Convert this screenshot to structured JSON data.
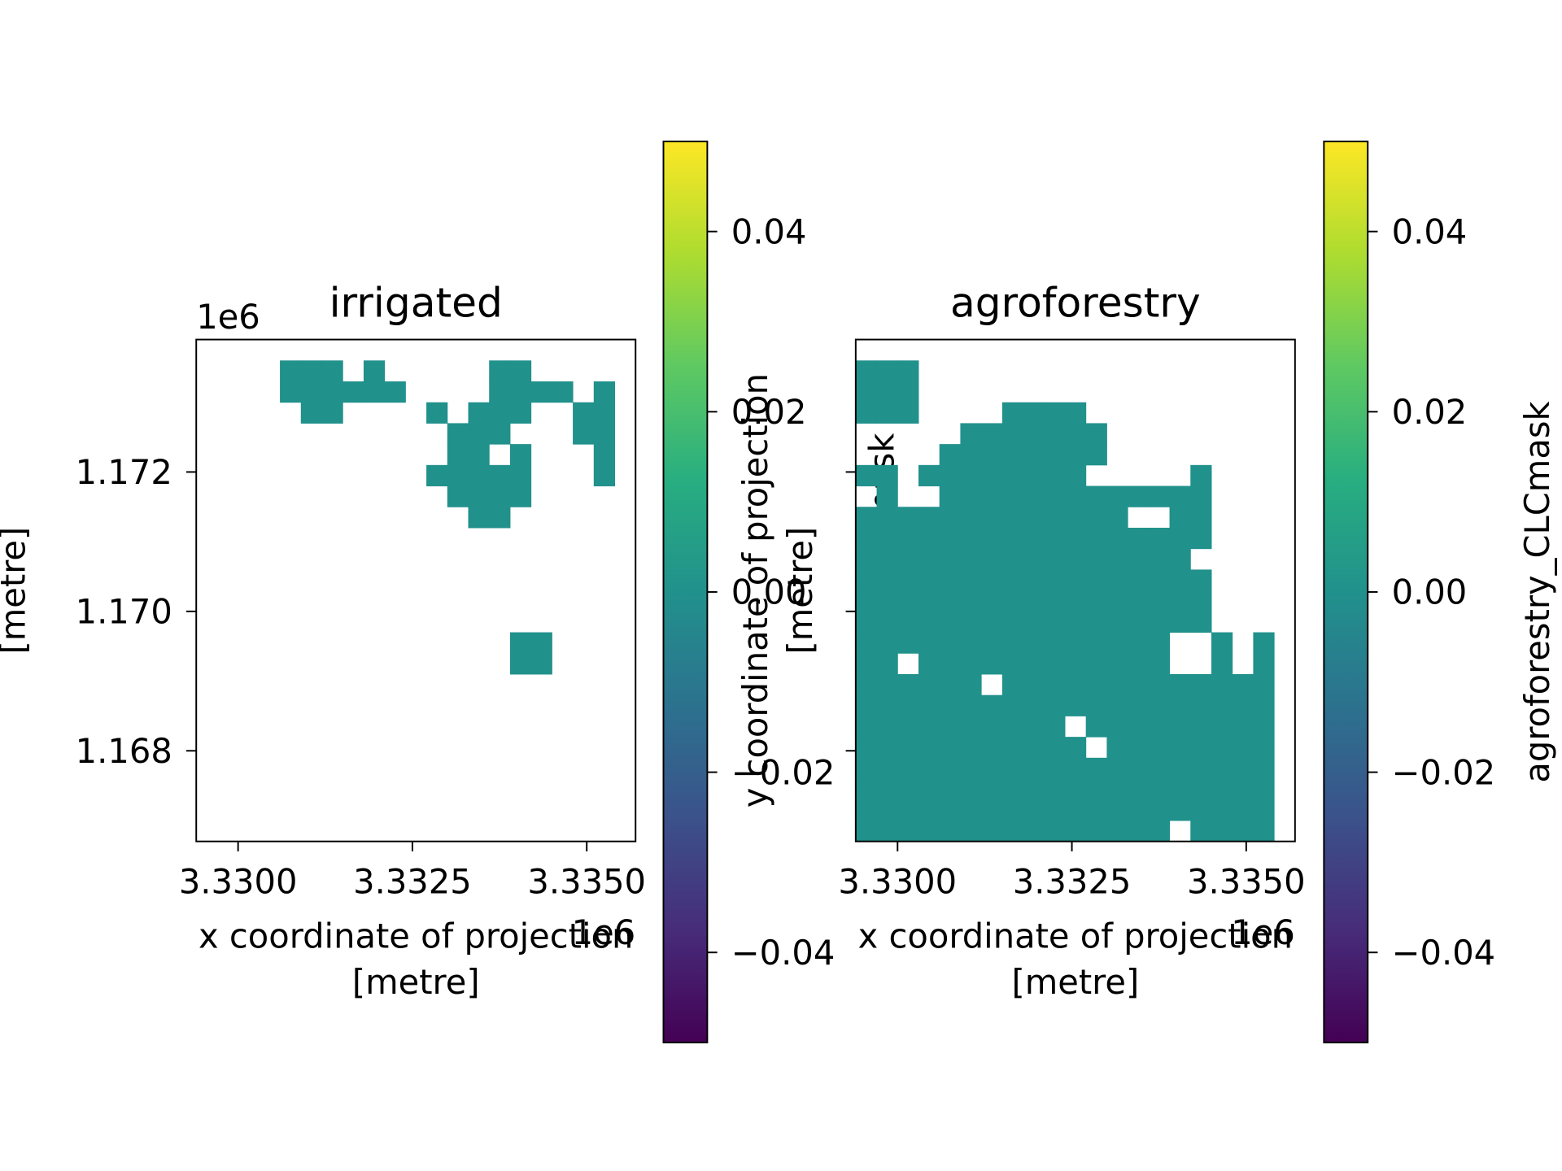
{
  "chart_data": [
    {
      "type": "heatmap",
      "title": "irrigated",
      "cmap": "viridis",
      "xlabel": [
        "x coordinate of projection",
        "[metre]"
      ],
      "ylabel": [
        "y coordinate of projection",
        "[metre]"
      ],
      "xlim": [
        3329400,
        3335700
      ],
      "ylim": [
        1166700,
        1173900
      ],
      "xticks": [
        {
          "value": 3330000,
          "label": "3.3300"
        },
        {
          "value": 3332500,
          "label": "3.3325"
        },
        {
          "value": 3335000,
          "label": "3.3350"
        }
      ],
      "xoffset": "1e6",
      "yticks": [
        {
          "value": 1168000,
          "label": "1.168"
        },
        {
          "value": 1170000,
          "label": "1.170"
        },
        {
          "value": 1172000,
          "label": "1.172"
        }
      ],
      "yoffset": "1e6",
      "z": [
        [
          null,
          null,
          null,
          null,
          null,
          null,
          null,
          null,
          null,
          null,
          null,
          null,
          null,
          null,
          null,
          null,
          null,
          null,
          null,
          null,
          null
        ],
        [
          null,
          null,
          null,
          null,
          0,
          0,
          0,
          null,
          0,
          null,
          null,
          null,
          null,
          null,
          0,
          0,
          null,
          null,
          null,
          null,
          null
        ],
        [
          null,
          null,
          null,
          null,
          0,
          0,
          0,
          0,
          0,
          0,
          null,
          null,
          null,
          null,
          0,
          0,
          0,
          0,
          null,
          0,
          null
        ],
        [
          null,
          null,
          null,
          null,
          null,
          0,
          0,
          null,
          null,
          null,
          null,
          0,
          null,
          0,
          0,
          0,
          null,
          null,
          0,
          0,
          null
        ],
        [
          null,
          null,
          null,
          null,
          null,
          null,
          null,
          null,
          null,
          null,
          null,
          null,
          0,
          0,
          0,
          null,
          null,
          null,
          0,
          0,
          null
        ],
        [
          null,
          null,
          null,
          null,
          null,
          null,
          null,
          null,
          null,
          null,
          null,
          null,
          0,
          0,
          null,
          0,
          null,
          null,
          null,
          0,
          null
        ],
        [
          null,
          null,
          null,
          null,
          null,
          null,
          null,
          null,
          null,
          null,
          null,
          0,
          0,
          0,
          0,
          0,
          null,
          null,
          null,
          0,
          null
        ],
        [
          null,
          null,
          null,
          null,
          null,
          null,
          null,
          null,
          null,
          null,
          null,
          null,
          0,
          0,
          0,
          0,
          null,
          null,
          null,
          null,
          null
        ],
        [
          null,
          null,
          null,
          null,
          null,
          null,
          null,
          null,
          null,
          null,
          null,
          null,
          null,
          0,
          0,
          null,
          null,
          null,
          null,
          null,
          null
        ],
        [
          null,
          null,
          null,
          null,
          null,
          null,
          null,
          null,
          null,
          null,
          null,
          null,
          null,
          null,
          null,
          null,
          null,
          null,
          null,
          null,
          null
        ],
        [
          null,
          null,
          null,
          null,
          null,
          null,
          null,
          null,
          null,
          null,
          null,
          null,
          null,
          null,
          null,
          null,
          null,
          null,
          null,
          null,
          null
        ],
        [
          null,
          null,
          null,
          null,
          null,
          null,
          null,
          null,
          null,
          null,
          null,
          null,
          null,
          null,
          null,
          null,
          null,
          null,
          null,
          null,
          null
        ],
        [
          null,
          null,
          null,
          null,
          null,
          null,
          null,
          null,
          null,
          null,
          null,
          null,
          null,
          null,
          null,
          null,
          null,
          null,
          null,
          null,
          null
        ],
        [
          null,
          null,
          null,
          null,
          null,
          null,
          null,
          null,
          null,
          null,
          null,
          null,
          null,
          null,
          null,
          null,
          null,
          null,
          null,
          null,
          null
        ],
        [
          null,
          null,
          null,
          null,
          null,
          null,
          null,
          null,
          null,
          null,
          null,
          null,
          null,
          null,
          null,
          0,
          0,
          null,
          null,
          null,
          null
        ],
        [
          null,
          null,
          null,
          null,
          null,
          null,
          null,
          null,
          null,
          null,
          null,
          null,
          null,
          null,
          null,
          0,
          0,
          null,
          null,
          null,
          null
        ],
        [
          null,
          null,
          null,
          null,
          null,
          null,
          null,
          null,
          null,
          null,
          null,
          null,
          null,
          null,
          null,
          null,
          null,
          null,
          null,
          null,
          null
        ],
        [
          null,
          null,
          null,
          null,
          null,
          null,
          null,
          null,
          null,
          null,
          null,
          null,
          null,
          null,
          null,
          null,
          null,
          null,
          null,
          null,
          null
        ],
        [
          null,
          null,
          null,
          null,
          null,
          null,
          null,
          null,
          null,
          null,
          null,
          null,
          null,
          null,
          null,
          null,
          null,
          null,
          null,
          null,
          null
        ],
        [
          null,
          null,
          null,
          null,
          null,
          null,
          null,
          null,
          null,
          null,
          null,
          null,
          null,
          null,
          null,
          null,
          null,
          null,
          null,
          null,
          null
        ],
        [
          null,
          null,
          null,
          null,
          null,
          null,
          null,
          null,
          null,
          null,
          null,
          null,
          null,
          null,
          null,
          null,
          null,
          null,
          null,
          null,
          null
        ],
        [
          null,
          null,
          null,
          null,
          null,
          null,
          null,
          null,
          null,
          null,
          null,
          null,
          null,
          null,
          null,
          null,
          null,
          null,
          null,
          null,
          null
        ],
        [
          null,
          null,
          null,
          null,
          null,
          null,
          null,
          null,
          null,
          null,
          null,
          null,
          null,
          null,
          null,
          null,
          null,
          null,
          null,
          null,
          null
        ],
        [
          null,
          null,
          null,
          null,
          null,
          null,
          null,
          null,
          null,
          null,
          null,
          null,
          null,
          null,
          null,
          null,
          null,
          null,
          null,
          null,
          null
        ]
      ],
      "colorbar": {
        "label": "irrigated_CLCmask",
        "lim": [
          -0.05,
          0.05
        ],
        "ticks": [
          {
            "value": -0.04,
            "label": "−0.04"
          },
          {
            "value": -0.02,
            "label": "−0.02"
          },
          {
            "value": 0,
            "label": "0.00"
          },
          0.02,
          0.04
        ]
      }
    },
    {
      "type": "heatmap",
      "title": "agroforestry",
      "cmap": "viridis",
      "xlabel": [
        "x coordinate of projection",
        "[metre]"
      ],
      "ylabel": [
        "y coordinate of projection",
        "[metre]"
      ],
      "xlim": [
        3329400,
        3335700
      ],
      "ylim": [
        1166700,
        1173900
      ],
      "xticks": [
        {
          "value": 3330000,
          "label": "3.3300"
        },
        {
          "value": 3332500,
          "label": "3.3325"
        },
        {
          "value": 3335000,
          "label": "3.3350"
        }
      ],
      "xoffset": "1e6",
      "yticks": [
        1168000,
        1170000,
        1172000
      ],
      "z": [
        [
          null,
          null,
          null,
          null,
          null,
          null,
          null,
          null,
          null,
          null,
          null,
          null,
          null,
          null,
          null,
          null,
          null,
          null,
          null,
          null,
          null
        ],
        [
          0,
          0,
          0,
          null,
          null,
          null,
          null,
          null,
          null,
          null,
          null,
          null,
          null,
          null,
          null,
          null,
          null,
          null,
          null,
          null,
          null
        ],
        [
          0,
          0,
          0,
          null,
          null,
          null,
          null,
          null,
          null,
          null,
          null,
          null,
          null,
          null,
          null,
          null,
          null,
          null,
          null,
          null,
          null
        ],
        [
          0,
          0,
          0,
          null,
          null,
          null,
          null,
          0,
          0,
          0,
          0,
          null,
          null,
          null,
          null,
          null,
          null,
          null,
          null,
          null,
          null
        ],
        [
          null,
          null,
          null,
          null,
          null,
          0,
          0,
          0,
          0,
          0,
          0,
          0,
          null,
          null,
          null,
          null,
          null,
          null,
          null,
          null,
          null
        ],
        [
          null,
          null,
          null,
          null,
          0,
          0,
          0,
          0,
          0,
          0,
          0,
          0,
          null,
          null,
          null,
          null,
          null,
          null,
          null,
          null,
          null
        ],
        [
          0,
          0,
          null,
          0,
          0,
          0,
          0,
          0,
          0,
          0,
          0,
          null,
          null,
          null,
          null,
          null,
          0,
          null,
          null,
          null,
          null
        ],
        [
          null,
          0,
          null,
          null,
          0,
          0,
          0,
          0,
          0,
          0,
          0,
          0,
          0,
          0,
          0,
          0,
          0,
          null,
          null,
          null,
          null
        ],
        [
          0,
          0,
          0,
          0,
          0,
          0,
          0,
          0,
          0,
          0,
          0,
          0,
          0,
          null,
          null,
          0,
          0,
          null,
          null,
          null,
          null
        ],
        [
          0,
          0,
          0,
          0,
          0,
          0,
          0,
          0,
          0,
          0,
          0,
          0,
          0,
          0,
          0,
          0,
          0,
          null,
          null,
          null,
          null
        ],
        [
          0,
          0,
          0,
          0,
          0,
          0,
          0,
          0,
          0,
          0,
          0,
          0,
          0,
          0,
          0,
          0,
          null,
          null,
          null,
          null,
          null
        ],
        [
          0,
          0,
          0,
          0,
          0,
          0,
          0,
          0,
          0,
          0,
          0,
          0,
          0,
          0,
          0,
          0,
          0,
          null,
          null,
          null,
          null
        ],
        [
          0,
          0,
          0,
          0,
          0,
          0,
          0,
          0,
          0,
          0,
          0,
          0,
          0,
          0,
          0,
          0,
          0,
          null,
          null,
          null,
          null
        ],
        [
          0,
          0,
          0,
          0,
          0,
          0,
          0,
          0,
          0,
          0,
          0,
          0,
          0,
          0,
          0,
          0,
          0,
          null,
          null,
          null,
          null
        ],
        [
          0,
          0,
          0,
          0,
          0,
          0,
          0,
          0,
          0,
          0,
          0,
          0,
          0,
          0,
          0,
          null,
          null,
          0,
          null,
          0,
          null
        ],
        [
          0,
          0,
          null,
          0,
          0,
          0,
          0,
          0,
          0,
          0,
          0,
          0,
          0,
          0,
          0,
          null,
          null,
          0,
          null,
          0,
          null
        ],
        [
          0,
          0,
          0,
          0,
          0,
          0,
          null,
          0,
          0,
          0,
          0,
          0,
          0,
          0,
          0,
          0,
          0,
          0,
          0,
          0,
          null
        ],
        [
          0,
          0,
          0,
          0,
          0,
          0,
          0,
          0,
          0,
          0,
          0,
          0,
          0,
          0,
          0,
          0,
          0,
          0,
          0,
          0,
          null
        ],
        [
          0,
          0,
          0,
          0,
          0,
          0,
          0,
          0,
          0,
          0,
          null,
          0,
          0,
          0,
          0,
          0,
          0,
          0,
          0,
          0,
          null
        ],
        [
          0,
          0,
          0,
          0,
          0,
          0,
          0,
          0,
          0,
          0,
          0,
          null,
          0,
          0,
          0,
          0,
          0,
          0,
          0,
          0,
          null
        ],
        [
          0,
          0,
          0,
          0,
          0,
          0,
          0,
          0,
          0,
          0,
          0,
          0,
          0,
          0,
          0,
          0,
          0,
          0,
          0,
          0,
          null
        ],
        [
          0,
          0,
          0,
          0,
          0,
          0,
          0,
          0,
          0,
          0,
          0,
          0,
          0,
          0,
          0,
          0,
          0,
          0,
          0,
          0,
          null
        ],
        [
          0,
          0,
          0,
          0,
          0,
          0,
          0,
          0,
          0,
          0,
          0,
          0,
          0,
          0,
          0,
          0,
          0,
          0,
          0,
          0,
          null
        ],
        [
          0,
          0,
          0,
          0,
          0,
          0,
          0,
          0,
          0,
          0,
          0,
          0,
          0,
          0,
          0,
          null,
          0,
          0,
          0,
          0,
          null
        ]
      ],
      "colorbar": {
        "label": "agroforestry_CLCmask",
        "lim": [
          -0.05,
          0.05
        ],
        "ticks": [
          {
            "value": -0.04,
            "label": "−0.04"
          },
          {
            "value": -0.02,
            "label": "−0.02"
          },
          {
            "value": 0,
            "label": "0.00"
          },
          0.02,
          0.04
        ]
      }
    }
  ]
}
